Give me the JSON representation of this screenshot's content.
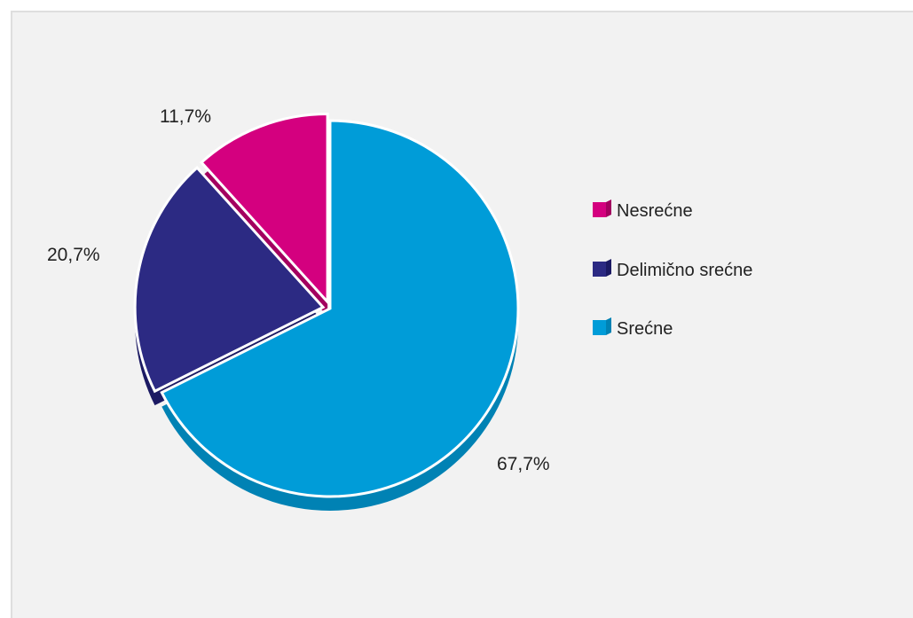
{
  "chart_data": {
    "type": "pie",
    "title": "",
    "legend_position": "right",
    "slices": [
      {
        "name": "Srećne",
        "value": 67.7,
        "label": "67,7%",
        "color": "#009cd8",
        "side_color": "#0082b4"
      },
      {
        "name": "Delimično srećne",
        "value": 20.7,
        "label": "20,7%",
        "color": "#2c2a83",
        "side_color": "#1c1a63"
      },
      {
        "name": "Nesrećne",
        "value": 11.7,
        "label": "11,7%",
        "color": "#d4007f",
        "side_color": "#a3005f"
      }
    ],
    "legend": [
      {
        "name": "Nesrećne",
        "color": "#d4007f",
        "side_color": "#a3005f"
      },
      {
        "name": "Delimično srećne",
        "color": "#2c2a83",
        "side_color": "#1c1a63"
      },
      {
        "name": "Srećne",
        "color": "#009cd8",
        "side_color": "#0082b4"
      }
    ]
  }
}
